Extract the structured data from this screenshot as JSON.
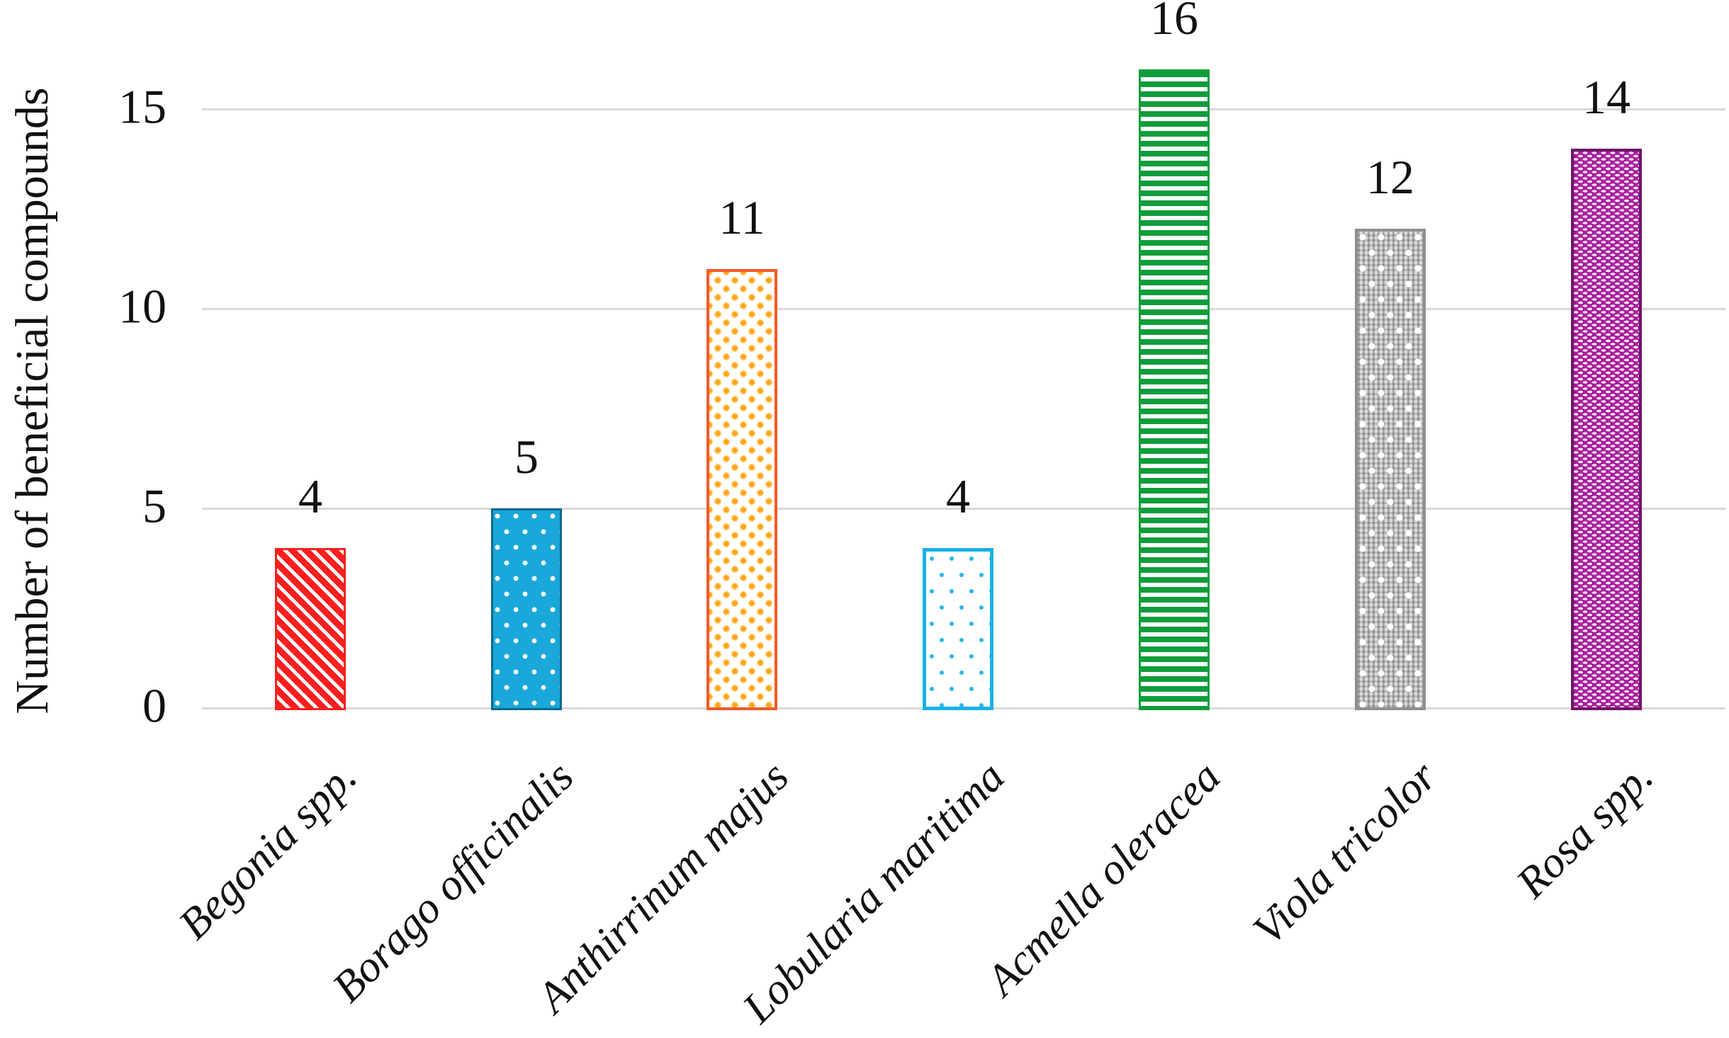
{
  "chart_data": {
    "type": "bar",
    "title": "",
    "xlabel": "",
    "ylabel": "Number of beneficial compounds",
    "ylim": [
      0,
      16
    ],
    "yticks": [
      0,
      5,
      10,
      15
    ],
    "grid": "horizontal-light-gray",
    "legend": "none",
    "categories": [
      "Begonia spp.",
      "Borago officinalis",
      "Anthirrinum majus",
      "Lobularia maritima",
      "Acmella oleracea",
      "Viola tricolor",
      "Rosa spp."
    ],
    "values": [
      4,
      5,
      11,
      4,
      16,
      12,
      14
    ],
    "value_labels": [
      "4",
      "5",
      "11",
      "4",
      "16",
      "12",
      "14"
    ],
    "bar_styles": [
      {
        "pattern": "diagonal-stripes",
        "color": "#fb1f1f",
        "background": "#ffffff"
      },
      {
        "pattern": "white-dots",
        "color": "#1aa7da",
        "background": "#1aa7da"
      },
      {
        "pattern": "confetti-dots",
        "color": "#ffa41c",
        "background": "#ffffff"
      },
      {
        "pattern": "sparse-dots",
        "color": "#29b7e9",
        "background": "#ffffff"
      },
      {
        "pattern": "horizontal-stripes",
        "color": "#0f9d3b",
        "background": "#ffffff"
      },
      {
        "pattern": "weave-white-dots",
        "color": "#b5b5b5",
        "background": "#b5b5b5"
      },
      {
        "pattern": "weave-white-dashes",
        "color": "#b11ea6",
        "background": "#b11ea6"
      }
    ]
  }
}
